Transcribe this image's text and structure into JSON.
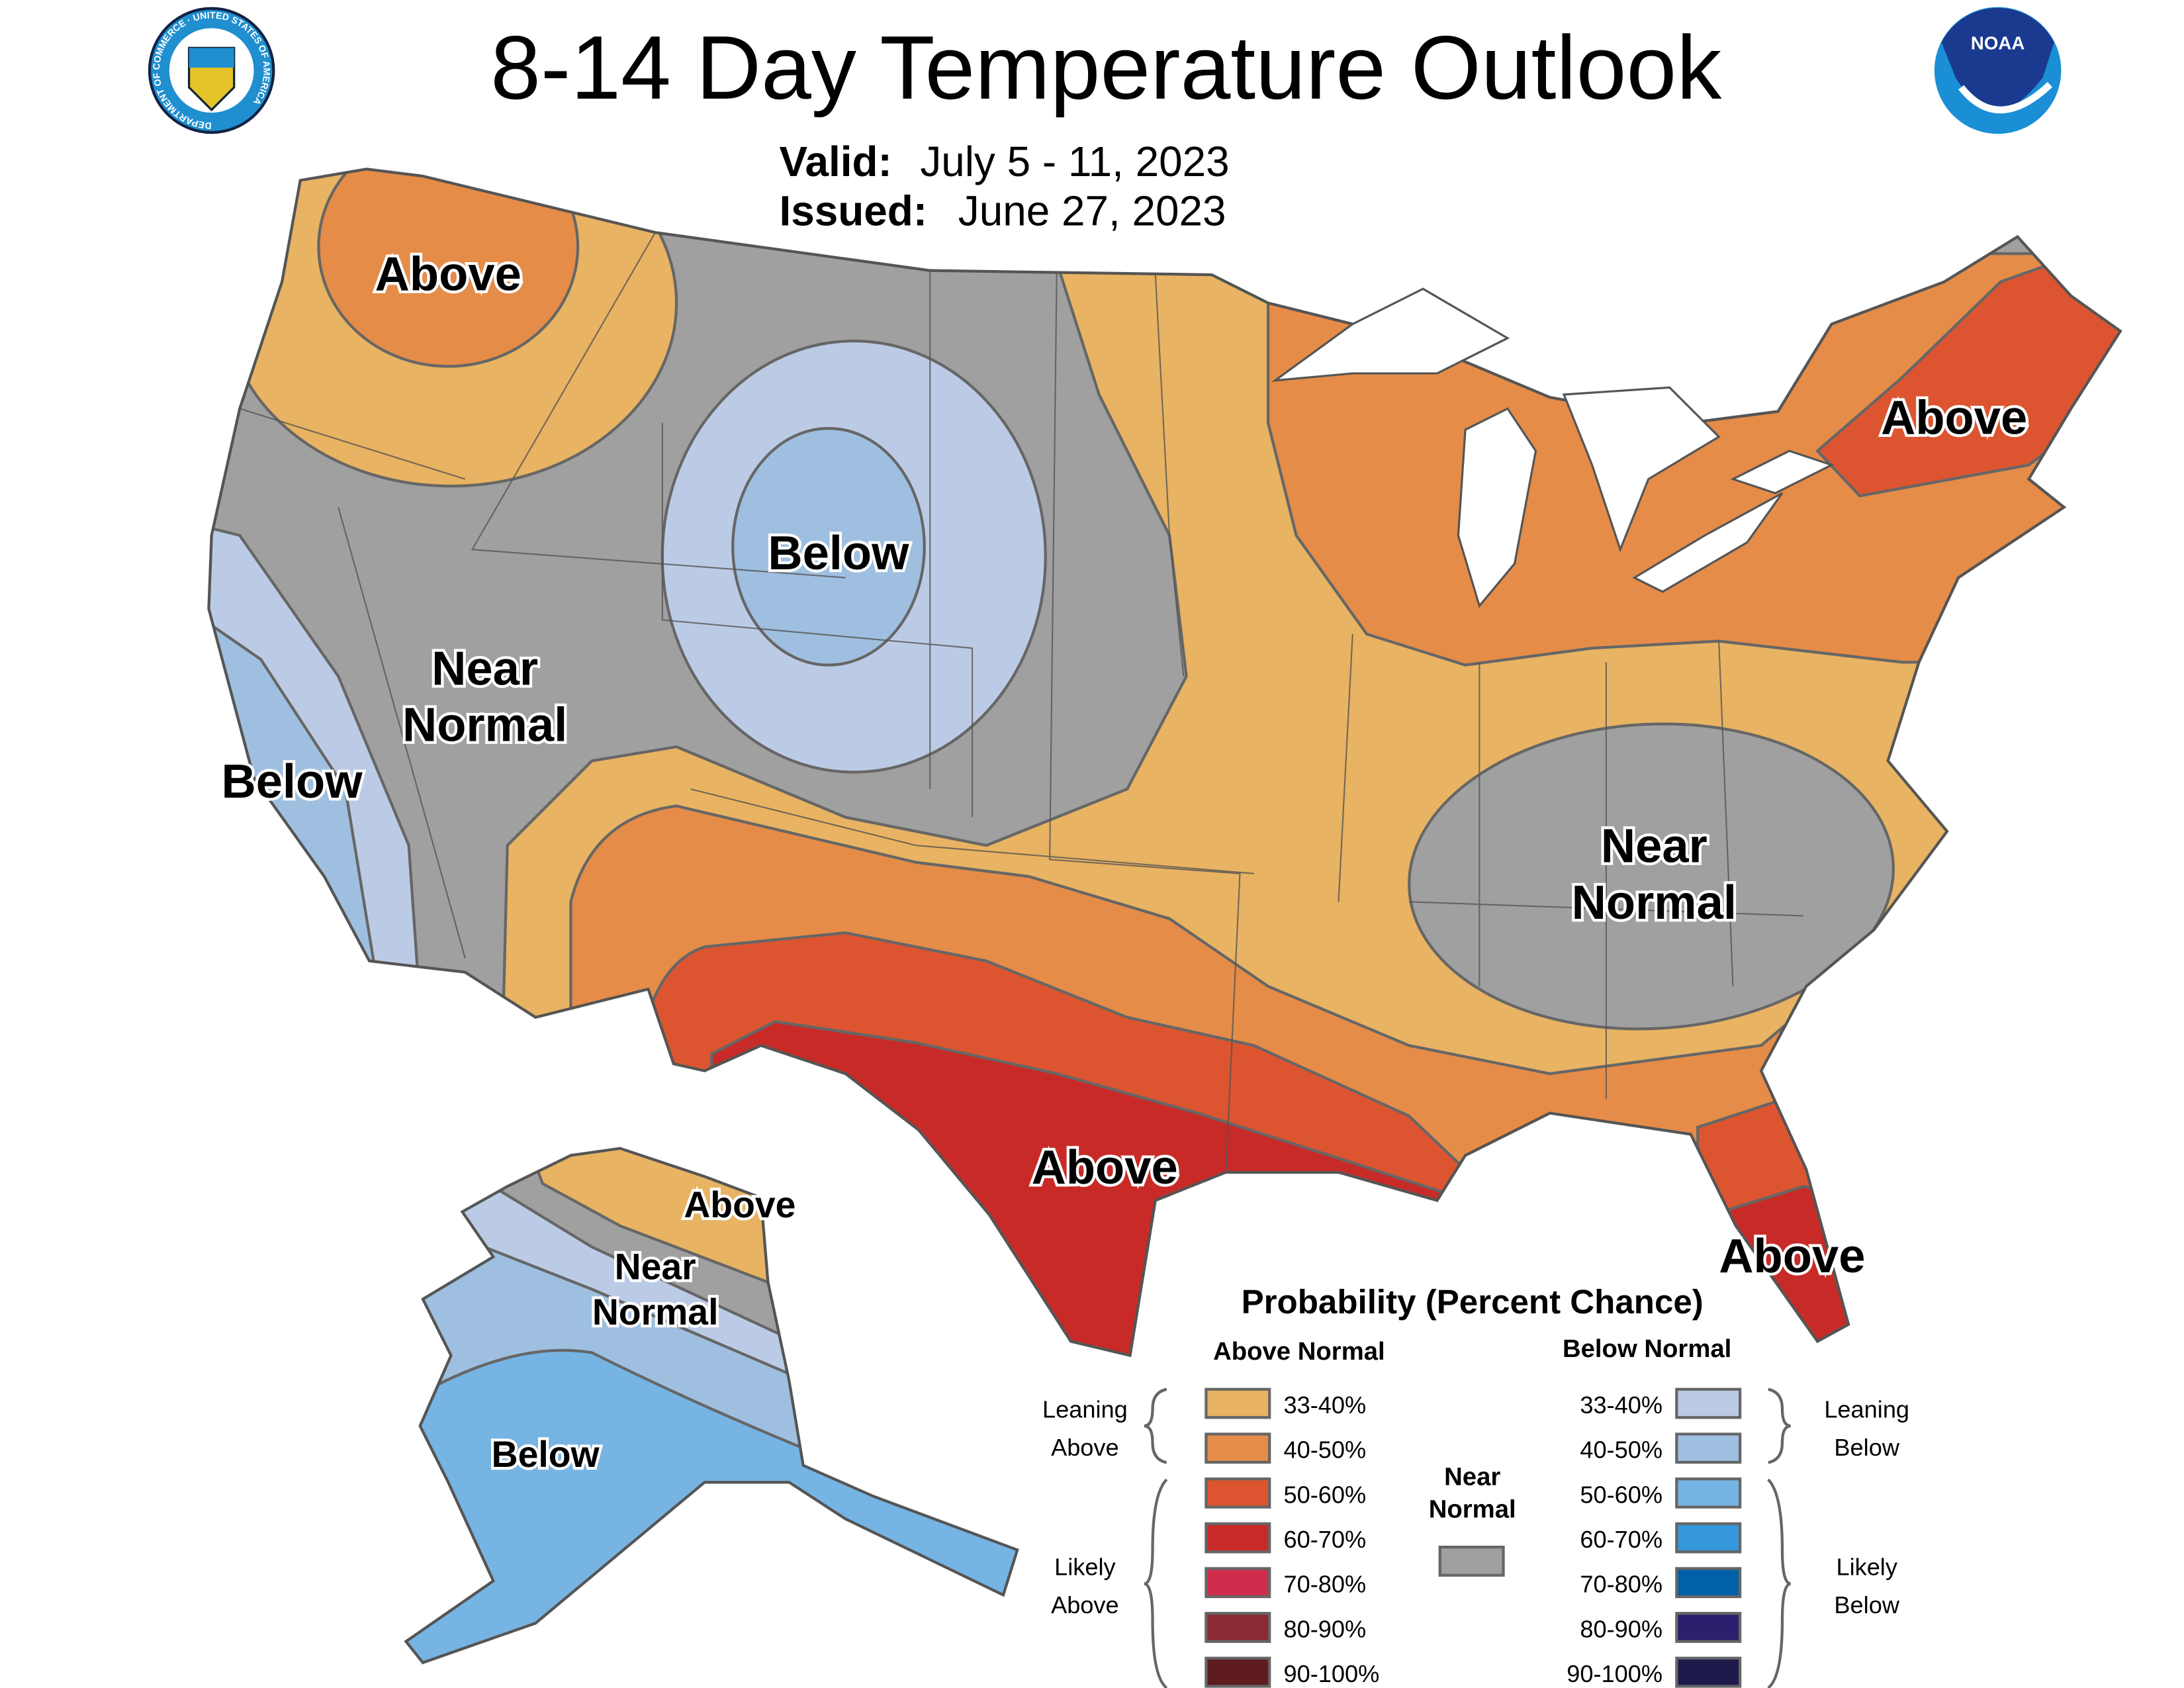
{
  "header": {
    "title": "8-14 Day Temperature Outlook",
    "valid_label": "Valid:",
    "valid_value": "July 5 - 11, 2023",
    "issued_label": "Issued:",
    "issued_value": "June 27, 2023",
    "left_logo": "Department of Commerce seal",
    "left_logo_text": "DEPARTMENT OF COMMERCE · UNITED STATES OF AMERICA",
    "right_logo": "NOAA logo",
    "right_logo_text": "NOAA"
  },
  "map_labels": {
    "nw_above": "Above",
    "west_below": "Below",
    "west_near_1": "Near",
    "west_near_2": "Normal",
    "central_below": "Below",
    "ne_above": "Above",
    "se_near_1": "Near",
    "se_near_2": "Normal",
    "texas_above": "Above",
    "florida_above": "Above",
    "ak_above": "Above",
    "ak_near_1": "Near",
    "ak_near_2": "Normal",
    "ak_below": "Below"
  },
  "legend": {
    "title": "Probability (Percent Chance)",
    "above_header": "Above Normal",
    "below_header": "Below Normal",
    "leaning_above": [
      "Leaning",
      "Above"
    ],
    "likely_above": [
      "Likely",
      "Above"
    ],
    "leaning_below": [
      "Leaning",
      "Below"
    ],
    "likely_below": [
      "Likely",
      "Below"
    ],
    "near_normal": [
      "Near",
      "Normal"
    ],
    "near_normal_color": "#a0a0a0",
    "above": [
      {
        "label": "33-40%",
        "color": "#e8b362"
      },
      {
        "label": "40-50%",
        "color": "#e58c48"
      },
      {
        "label": "50-60%",
        "color": "#dc5530"
      },
      {
        "label": "60-70%",
        "color": "#c82b27"
      },
      {
        "label": "70-80%",
        "color": "#d02c4c"
      },
      {
        "label": "80-90%",
        "color": "#8b2a33"
      },
      {
        "label": "90-100%",
        "color": "#5e1c1e"
      }
    ],
    "below": [
      {
        "label": "33-40%",
        "color": "#bccbe5"
      },
      {
        "label": "40-50%",
        "color": "#9ebfe0"
      },
      {
        "label": "50-60%",
        "color": "#76b4e3"
      },
      {
        "label": "60-70%",
        "color": "#3498db"
      },
      {
        "label": "70-80%",
        "color": "#0060a8"
      },
      {
        "label": "80-90%",
        "color": "#2c1f6e"
      },
      {
        "label": "90-100%",
        "color": "#1e1a4b"
      }
    ]
  }
}
